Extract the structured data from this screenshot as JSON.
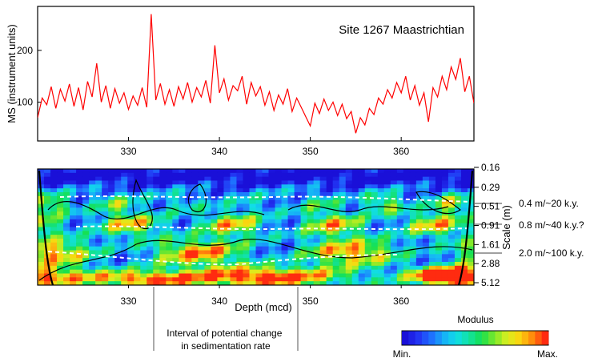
{
  "chart_data": [
    {
      "type": "line",
      "title": "Site 1267 Maastrichtian",
      "ylabel": "MS (instrument units)",
      "xlabel": "",
      "xlim": [
        320,
        368
      ],
      "ylim": [
        25,
        285
      ],
      "x_ticks": [
        330,
        340,
        350,
        360
      ],
      "y_ticks": [
        100,
        200
      ],
      "grid": false,
      "series": [
        {
          "color": "#ff0000",
          "x": [
            320.0,
            320.5,
            321.0,
            321.5,
            322.0,
            322.5,
            323.0,
            323.5,
            324.0,
            324.5,
            325.0,
            325.5,
            326.0,
            326.5,
            327.0,
            327.5,
            328.0,
            328.5,
            329.0,
            329.5,
            330.0,
            330.5,
            331.0,
            331.5,
            332.0,
            332.5,
            333.0,
            333.5,
            334.0,
            334.5,
            335.0,
            335.5,
            336.0,
            336.5,
            337.0,
            337.5,
            338.0,
            338.5,
            339.0,
            339.5,
            340.0,
            340.5,
            341.0,
            341.5,
            342.0,
            342.5,
            343.0,
            343.5,
            344.0,
            344.5,
            345.0,
            345.5,
            346.0,
            346.5,
            347.0,
            347.5,
            348.0,
            348.5,
            349.0,
            349.5,
            350.0,
            350.5,
            351.0,
            351.5,
            352.0,
            352.5,
            353.0,
            353.5,
            354.0,
            354.5,
            355.0,
            355.5,
            356.0,
            356.5,
            357.0,
            357.5,
            358.0,
            358.5,
            359.0,
            359.5,
            360.0,
            360.5,
            361.0,
            361.5,
            362.0,
            362.5,
            363.0,
            363.5,
            364.0,
            364.5,
            365.0,
            365.5,
            366.0,
            366.5,
            367.0,
            367.5,
            368.0
          ],
          "y": [
            70,
            108,
            95,
            130,
            88,
            125,
            102,
            135,
            92,
            128,
            85,
            140,
            110,
            175,
            100,
            132,
            88,
            126,
            98,
            118,
            86,
            112,
            94,
            128,
            90,
            270,
            104,
            136,
            96,
            124,
            92,
            130,
            106,
            138,
            100,
            128,
            110,
            142,
            98,
            210,
            118,
            145,
            104,
            132,
            122,
            150,
            96,
            138,
            112,
            130,
            94,
            120,
            84,
            114,
            96,
            126,
            82,
            108,
            90,
            72,
            54,
            98,
            78,
            106,
            84,
            100,
            74,
            96,
            68,
            82,
            40,
            70,
            56,
            88,
            76,
            108,
            96,
            124,
            108,
            138,
            118,
            150,
            104,
            132,
            94,
            118,
            62,
            128,
            110,
            150,
            124,
            168,
            144,
            185,
            120,
            150,
            98
          ]
        }
      ]
    },
    {
      "type": "heatmap",
      "xlabel": "Depth (mcd)",
      "ylabel": "Scale (m)",
      "xlim": [
        320,
        368
      ],
      "x_ticks": [
        330,
        340,
        350,
        360
      ],
      "y_tick_labels": [
        "0.16",
        "0.29",
        "0.51",
        "0.91",
        "1.61",
        "2.88",
        "5.12"
      ],
      "y_scale": "log",
      "colorscale": {
        "title": "Modulus",
        "min_label": "Min.",
        "max_label": "Max.",
        "colors": [
          "#1a10d8",
          "#2233f2",
          "#1f6bff",
          "#17aef7",
          "#11dde8",
          "#12e2a3",
          "#15e050",
          "#79e82b",
          "#d7ef20",
          "#fbd50f",
          "#ff8a0c",
          "#ff2b10"
        ]
      },
      "annotations": [
        "0.4 m/~20 k.y.",
        "0.8 m/~40 k.y.?",
        "2.0 m/~100 k.y.",
        "Interval of potential change in sedimentation rate"
      ]
    }
  ]
}
